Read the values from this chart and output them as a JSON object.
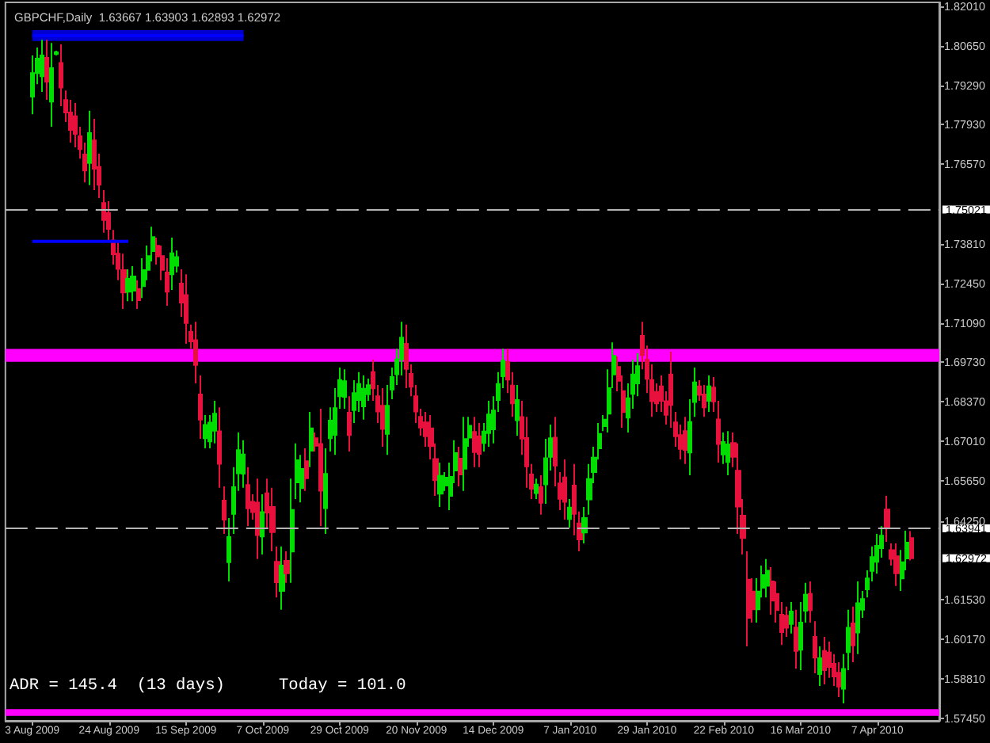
{
  "chart_data": {
    "type": "candlestick",
    "title": "GBPCHF,Daily  1.63667 1.63903 1.62893 1.62972",
    "categories": [
      "3 Aug 2009",
      null,
      null,
      null,
      null,
      null,
      null,
      null,
      null,
      null,
      null,
      null,
      null,
      null,
      null,
      null,
      "24 Aug 2009",
      null,
      null,
      null,
      null,
      null,
      null,
      null,
      null,
      null,
      null,
      null,
      null,
      null,
      null,
      null,
      "15 Sep 2009",
      null,
      null,
      null,
      null,
      null,
      null,
      null,
      null,
      null,
      null,
      null,
      null,
      null,
      null,
      null,
      "7 Oct 2009",
      null,
      null,
      null,
      null,
      null,
      null,
      null,
      null,
      null,
      null,
      null,
      null,
      null,
      null,
      null,
      "29 Oct 2009",
      null,
      null,
      null,
      null,
      null,
      null,
      null,
      null,
      null,
      null,
      null,
      null,
      null,
      null,
      null,
      "20 Nov 2009",
      null,
      null,
      null,
      null,
      null,
      null,
      null,
      null,
      null,
      null,
      null,
      null,
      null,
      null,
      null,
      "14 Dec 2009",
      null,
      null,
      null,
      null,
      null,
      null,
      null,
      null,
      null,
      null,
      null,
      null,
      null,
      null,
      null,
      "7 Jan 2010",
      null,
      null,
      null,
      null,
      null,
      null,
      null,
      null,
      null,
      null,
      null,
      null,
      null,
      null,
      null,
      "29 Jan 2010",
      null,
      null,
      null,
      null,
      null,
      null,
      null,
      null,
      null,
      null,
      null,
      null,
      null,
      null,
      null,
      "22 Feb 2010",
      null,
      null,
      null,
      null,
      null,
      null,
      null,
      null,
      null,
      null,
      null,
      null,
      null,
      null,
      null,
      "16 Mar 2010",
      null,
      null,
      null,
      null,
      null,
      null,
      null,
      null,
      null,
      null,
      null,
      null,
      null,
      null,
      null,
      "7 Apr 2010",
      null,
      null,
      null,
      null,
      null,
      null,
      null
    ],
    "ohlc": [
      [
        1.789,
        1.8032,
        1.7829,
        1.7971
      ],
      [
        1.7971,
        1.8059,
        1.7933,
        1.8021
      ],
      [
        1.796,
        1.8086,
        1.7906,
        1.8032
      ],
      [
        1.8024,
        1.8086,
        1.7879,
        1.7941
      ],
      [
        1.7873,
        1.8075,
        1.7786,
        1.7988
      ],
      [
        1.8037,
        1.8048,
        1.8032,
        1.8043
      ],
      [
        1.8006,
        1.807,
        1.7857,
        1.7921
      ],
      [
        1.7878,
        1.7911,
        1.7802,
        1.7835
      ],
      [
        1.7835,
        1.7879,
        1.7731,
        1.7775
      ],
      [
        1.7822,
        1.7868,
        1.7715,
        1.7761
      ],
      [
        1.7753,
        1.7786,
        1.7676,
        1.7709
      ],
      [
        1.769,
        1.7731,
        1.7594,
        1.7635
      ],
      [
        1.7661,
        1.7841,
        1.7584,
        1.7764
      ],
      [
        1.7739,
        1.7813,
        1.7567,
        1.7641
      ],
      [
        1.7647,
        1.7693,
        1.754,
        1.7586
      ],
      [
        1.7523,
        1.7567,
        1.742,
        1.7464
      ],
      [
        1.7488,
        1.7529,
        1.7392,
        1.7433
      ],
      [
        1.7394,
        1.743,
        1.731,
        1.7346
      ],
      [
        1.7348,
        1.7387,
        1.7256,
        1.7295
      ],
      [
        1.7291,
        1.7348,
        1.7157,
        1.7214
      ],
      [
        1.7217,
        1.7294,
        1.7184,
        1.7261
      ],
      [
        1.722,
        1.7305,
        1.7184,
        1.7269
      ],
      [
        1.7226,
        1.7256,
        1.7157,
        1.7187
      ],
      [
        1.7236,
        1.7332,
        1.7195,
        1.7291
      ],
      [
        1.7292,
        1.7376,
        1.7256,
        1.734
      ],
      [
        1.7357,
        1.7441,
        1.7321,
        1.7405
      ],
      [
        1.7375,
        1.7403,
        1.731,
        1.7338
      ],
      [
        1.734,
        1.7376,
        1.7256,
        1.7292
      ],
      [
        1.7283,
        1.7332,
        1.7168,
        1.7217
      ],
      [
        1.7277,
        1.7403,
        1.7223,
        1.7349
      ],
      [
        1.7306,
        1.7359,
        1.7283,
        1.7336
      ],
      [
        1.7245,
        1.7294,
        1.713,
        1.7179
      ],
      [
        1.7205,
        1.7277,
        1.7037,
        1.7109
      ],
      [
        1.7078,
        1.7103,
        1.702,
        1.7045
      ],
      [
        1.7049,
        1.7113,
        1.69,
        1.6964
      ],
      [
        1.6862,
        1.6928,
        1.6709,
        1.6775
      ],
      [
        1.6711,
        1.6791,
        1.6676,
        1.6757
      ],
      [
        1.67,
        1.6791,
        1.6676,
        1.6765
      ],
      [
        1.6737,
        1.684,
        1.6693,
        1.6796
      ],
      [
        1.6735,
        1.6818,
        1.654,
        1.6623
      ],
      [
        1.6496,
        1.6545,
        1.6381,
        1.643
      ],
      [
        1.6283,
        1.6436,
        1.6217,
        1.637
      ],
      [
        1.645,
        1.6611,
        1.6381,
        1.6542
      ],
      [
        1.659,
        1.6731,
        1.6529,
        1.667
      ],
      [
        1.6589,
        1.6704,
        1.654,
        1.6655
      ],
      [
        1.655,
        1.6611,
        1.6408,
        1.6469
      ],
      [
        1.6492,
        1.6518,
        1.643,
        1.6456
      ],
      [
        1.6489,
        1.6572,
        1.6294,
        1.6377
      ],
      [
        1.6372,
        1.6518,
        1.631,
        1.6456
      ],
      [
        1.6521,
        1.6572,
        1.6403,
        1.6454
      ],
      [
        1.6474,
        1.654,
        1.6321,
        1.6387
      ],
      [
        1.6285,
        1.6337,
        1.6162,
        1.6214
      ],
      [
        1.6184,
        1.6337,
        1.6119,
        1.6272
      ],
      [
        1.6288,
        1.6321,
        1.6212,
        1.6245
      ],
      [
        1.632,
        1.6572,
        1.6212,
        1.6464
      ],
      [
        1.6559,
        1.6693,
        1.6501,
        1.6635
      ],
      [
        1.6539,
        1.6654,
        1.649,
        1.6605
      ],
      [
        1.6632,
        1.6676,
        1.6529,
        1.6573
      ],
      [
        1.6668,
        1.6802,
        1.6611,
        1.6745
      ],
      [
        1.6711,
        1.6731,
        1.6665,
        1.6685
      ],
      [
        1.6691,
        1.6813,
        1.6408,
        1.653
      ],
      [
        1.647,
        1.6676,
        1.6381,
        1.6588
      ],
      [
        1.6711,
        1.6818,
        1.6665,
        1.6772
      ],
      [
        1.6723,
        1.6884,
        1.6654,
        1.6815
      ],
      [
        1.6856,
        1.6955,
        1.6813,
        1.6912
      ],
      [
        1.6854,
        1.6949,
        1.6813,
        1.6908
      ],
      [
        1.6799,
        1.6856,
        1.6665,
        1.6722
      ],
      [
        1.6808,
        1.6911,
        1.6764,
        1.6867
      ],
      [
        1.6843,
        1.6939,
        1.6802,
        1.6898
      ],
      [
        1.6821,
        1.6928,
        1.6775,
        1.6882
      ],
      [
        1.6863,
        1.6917,
        1.684,
        1.6894
      ],
      [
        1.6939,
        1.6982,
        1.684,
        1.6883
      ],
      [
        1.6856,
        1.6895,
        1.6764,
        1.6803
      ],
      [
        1.6823,
        1.6884,
        1.6682,
        1.6743
      ],
      [
        1.6726,
        1.6895,
        1.6654,
        1.6823
      ],
      [
        1.6879,
        1.6955,
        1.6846,
        1.6922
      ],
      [
        1.6932,
        1.702,
        1.6895,
        1.6983
      ],
      [
        1.6984,
        1.7113,
        1.6928,
        1.7058
      ],
      [
        1.7037,
        1.7103,
        1.6884,
        1.695
      ],
      [
        1.6933,
        1.6966,
        1.6856,
        1.6889
      ],
      [
        1.6856,
        1.6895,
        1.6764,
        1.6803
      ],
      [
        1.6785,
        1.6813,
        1.672,
        1.6748
      ],
      [
        1.6766,
        1.6802,
        1.6682,
        1.6718
      ],
      [
        1.6745,
        1.6791,
        1.6638,
        1.6684
      ],
      [
        1.6639,
        1.6693,
        1.6512,
        1.6566
      ],
      [
        1.652,
        1.6627,
        1.6474,
        1.6581
      ],
      [
        1.6548,
        1.6594,
        1.6529,
        1.6575
      ],
      [
        1.6512,
        1.6627,
        1.6463,
        1.6578
      ],
      [
        1.66,
        1.6704,
        1.6556,
        1.666
      ],
      [
        1.6641,
        1.6682,
        1.6545,
        1.6586
      ],
      [
        1.6606,
        1.6785,
        1.6529,
        1.6708
      ],
      [
        1.6713,
        1.6785,
        1.6682,
        1.6754
      ],
      [
        1.6733,
        1.6785,
        1.6611,
        1.6663
      ],
      [
        1.6718,
        1.6764,
        1.6611,
        1.6657
      ],
      [
        1.6695,
        1.6764,
        1.6665,
        1.6734
      ],
      [
        1.6729,
        1.684,
        1.6682,
        1.6793
      ],
      [
        1.6742,
        1.6856,
        1.6693,
        1.6807
      ],
      [
        1.6843,
        1.6939,
        1.6802,
        1.6898
      ],
      [
        1.6925,
        1.702,
        1.6884,
        1.6979
      ],
      [
        1.6974,
        1.702,
        1.6867,
        1.6913
      ],
      [
        1.6893,
        1.6939,
        1.6785,
        1.6831
      ],
      [
        1.6773,
        1.6895,
        1.672,
        1.6843
      ],
      [
        1.6784,
        1.684,
        1.6654,
        1.671
      ],
      [
        1.6712,
        1.6785,
        1.654,
        1.6614
      ],
      [
        1.6586,
        1.6622,
        1.6501,
        1.6537
      ],
      [
        1.6522,
        1.6572,
        1.6501,
        1.6551
      ],
      [
        1.6542,
        1.6583,
        1.6447,
        1.6488
      ],
      [
        1.6552,
        1.6709,
        1.6485,
        1.6642
      ],
      [
        1.6647,
        1.6758,
        1.66,
        1.6711
      ],
      [
        1.6713,
        1.6785,
        1.6545,
        1.6617
      ],
      [
        1.6555,
        1.6594,
        1.6463,
        1.6502
      ],
      [
        1.6576,
        1.6638,
        1.643,
        1.6492
      ],
      [
        1.6432,
        1.6501,
        1.6403,
        1.6472
      ],
      [
        1.6548,
        1.6622,
        1.6376,
        1.645
      ],
      [
        1.6417,
        1.6458,
        1.6321,
        1.6362
      ],
      [
        1.6386,
        1.6474,
        1.6348,
        1.6436
      ],
      [
        1.65,
        1.6622,
        1.6447,
        1.657
      ],
      [
        1.6594,
        1.6682,
        1.6556,
        1.6644
      ],
      [
        1.6676,
        1.6764,
        1.6638,
        1.6726
      ],
      [
        1.6753,
        1.6791,
        1.6736,
        1.6775
      ],
      [
        1.6796,
        1.6949,
        1.6731,
        1.6884
      ],
      [
        1.6931,
        1.7042,
        1.6884,
        1.6995
      ],
      [
        1.6957,
        1.6993,
        1.6873,
        1.6909
      ],
      [
        1.6874,
        1.6928,
        1.6747,
        1.6801
      ],
      [
        1.6782,
        1.69,
        1.6731,
        1.6849
      ],
      [
        1.6864,
        1.6982,
        1.6813,
        1.6931
      ],
      [
        1.69,
        1.7004,
        1.6856,
        1.696
      ],
      [
        1.7064,
        1.7113,
        1.6949,
        1.6998
      ],
      [
        1.6982,
        1.7031,
        1.6867,
        1.6916
      ],
      [
        1.6912,
        1.6966,
        1.6785,
        1.6839
      ],
      [
        1.6871,
        1.69,
        1.6802,
        1.6831
      ],
      [
        1.689,
        1.6928,
        1.6802,
        1.684
      ],
      [
        1.6839,
        1.6873,
        1.6758,
        1.6792
      ],
      [
        1.6931,
        1.701,
        1.6747,
        1.6826
      ],
      [
        1.6766,
        1.6802,
        1.6682,
        1.6718
      ],
      [
        1.6722,
        1.6758,
        1.6638,
        1.6674
      ],
      [
        1.6736,
        1.6785,
        1.6622,
        1.6671
      ],
      [
        1.6662,
        1.6846,
        1.6583,
        1.6767
      ],
      [
        1.6836,
        1.6955,
        1.6785,
        1.6904
      ],
      [
        1.689,
        1.6911,
        1.684,
        1.6861
      ],
      [
        1.6862,
        1.6895,
        1.6785,
        1.6818
      ],
      [
        1.684,
        1.6928,
        1.6802,
        1.689
      ],
      [
        1.6886,
        1.6922,
        1.6802,
        1.6838
      ],
      [
        1.6776,
        1.684,
        1.6627,
        1.6691
      ],
      [
        1.6655,
        1.6731,
        1.6622,
        1.6698
      ],
      [
        1.6629,
        1.6736,
        1.6583,
        1.669
      ],
      [
        1.6695,
        1.6731,
        1.6611,
        1.6647
      ],
      [
        1.6599,
        1.6693,
        1.6381,
        1.6475
      ],
      [
        1.6444,
        1.6501,
        1.631,
        1.6367
      ],
      [
        1.6223,
        1.6321,
        1.5993,
        1.6091
      ],
      [
        1.6182,
        1.6228,
        1.6075,
        1.6121
      ],
      [
        1.6121,
        1.6228,
        1.6075,
        1.6182
      ],
      [
        1.6195,
        1.6272,
        1.6162,
        1.6239
      ],
      [
        1.6202,
        1.6294,
        1.6162,
        1.6254
      ],
      [
        1.6217,
        1.6266,
        1.6102,
        1.6151
      ],
      [
        1.6174,
        1.6217,
        1.6075,
        1.6118
      ],
      [
        1.6102,
        1.6146,
        1.5998,
        1.6042
      ],
      [
        1.6099,
        1.613,
        1.6026,
        1.6057
      ],
      [
        1.607,
        1.6146,
        1.6037,
        1.6113
      ],
      [
        1.6058,
        1.6119,
        1.5916,
        1.5977
      ],
      [
        1.5981,
        1.6146,
        1.5911,
        1.6075
      ],
      [
        1.6116,
        1.6212,
        1.6075,
        1.6171
      ],
      [
        1.6174,
        1.6217,
        1.6075,
        1.6118
      ],
      [
        1.6026,
        1.608,
        1.59,
        1.5954
      ],
      [
        1.5897,
        1.5993,
        1.5856,
        1.5952
      ],
      [
        1.5977,
        1.6026,
        1.5862,
        1.5911
      ],
      [
        1.5972,
        1.6009,
        1.5884,
        1.5922
      ],
      [
        1.5933,
        1.5966,
        1.5856,
        1.5889
      ],
      [
        1.5902,
        1.5938,
        1.5818,
        1.5854
      ],
      [
        1.5847,
        1.5966,
        1.5796,
        1.5915
      ],
      [
        1.5973,
        1.6119,
        1.5911,
        1.6057
      ],
      [
        1.6072,
        1.613,
        1.5938,
        1.5996
      ],
      [
        1.6041,
        1.6217,
        1.5966,
        1.6142
      ],
      [
        1.6119,
        1.6184,
        1.6091,
        1.6156
      ],
      [
        1.619,
        1.6255,
        1.6162,
        1.6227
      ],
      [
        1.6253,
        1.6337,
        1.6217,
        1.6301
      ],
      [
        1.6285,
        1.6381,
        1.6244,
        1.634
      ],
      [
        1.6332,
        1.6408,
        1.6299,
        1.6375
      ],
      [
        1.6465,
        1.6512,
        1.6354,
        1.6401
      ],
      [
        1.6325,
        1.6348,
        1.6272,
        1.6295
      ],
      [
        1.6304,
        1.6348,
        1.6201,
        1.6245
      ],
      [
        1.6227,
        1.6326,
        1.6184,
        1.6283
      ],
      [
        1.6296,
        1.6392,
        1.6255,
        1.6351
      ],
      [
        1.63667,
        1.63903,
        1.62893,
        1.62972
      ]
    ],
    "colors": [
      "#00dd00",
      "#00dd00",
      "#00dd00",
      "#e8103c",
      "#00dd00",
      "#00dd00",
      "#e8103c",
      "#e8103c",
      "#e8103c",
      "#e8103c",
      "#e8103c",
      "#e8103c",
      "#00dd00",
      "#e8103c",
      "#e8103c",
      "#e8103c",
      "#e8103c",
      "#e8103c",
      "#e8103c",
      "#e8103c",
      "#00dd00",
      "#00dd00",
      "#e8103c",
      "#00dd00",
      "#00dd00",
      "#00dd00",
      "#e8103c",
      "#e8103c",
      "#e8103c",
      "#00dd00",
      "#00dd00",
      "#e8103c",
      "#e8103c",
      "#e8103c",
      "#e8103c",
      "#e8103c",
      "#00dd00",
      "#00dd00",
      "#00dd00",
      "#e8103c",
      "#e8103c",
      "#00dd00",
      "#00dd00",
      "#00dd00",
      "#00dd00",
      "#e8103c",
      "#e8103c",
      "#e8103c",
      "#00dd00",
      "#e8103c",
      "#e8103c",
      "#e8103c",
      "#00dd00",
      "#e8103c",
      "#00dd00",
      "#00dd00",
      "#00dd00",
      "#e8103c",
      "#00dd00",
      "#e8103c",
      "#e8103c",
      "#00dd00",
      "#00dd00",
      "#00dd00",
      "#00dd00",
      "#00dd00",
      "#e8103c",
      "#00dd00",
      "#00dd00",
      "#00dd00",
      "#00dd00",
      "#e8103c",
      "#e8103c",
      "#e8103c",
      "#00dd00",
      "#00dd00",
      "#00dd00",
      "#00dd00",
      "#e8103c",
      "#e8103c",
      "#e8103c",
      "#e8103c",
      "#e8103c",
      "#e8103c",
      "#e8103c",
      "#00dd00",
      "#00dd00",
      "#00dd00",
      "#00dd00",
      "#e8103c",
      "#00dd00",
      "#00dd00",
      "#e8103c",
      "#e8103c",
      "#00dd00",
      "#00dd00",
      "#00dd00",
      "#00dd00",
      "#00dd00",
      "#e8103c",
      "#e8103c",
      "#00dd00",
      "#e8103c",
      "#e8103c",
      "#e8103c",
      "#00dd00",
      "#e8103c",
      "#00dd00",
      "#00dd00",
      "#e8103c",
      "#e8103c",
      "#e8103c",
      "#00dd00",
      "#e8103c",
      "#e8103c",
      "#00dd00",
      "#00dd00",
      "#00dd00",
      "#00dd00",
      "#00dd00",
      "#00dd00",
      "#00dd00",
      "#e8103c",
      "#e8103c",
      "#00dd00",
      "#00dd00",
      "#00dd00",
      "#e8103c",
      "#e8103c",
      "#e8103c",
      "#e8103c",
      "#e8103c",
      "#e8103c",
      "#e8103c",
      "#e8103c",
      "#e8103c",
      "#e8103c",
      "#00dd00",
      "#00dd00",
      "#e8103c",
      "#e8103c",
      "#00dd00",
      "#e8103c",
      "#e8103c",
      "#00dd00",
      "#00dd00",
      "#e8103c",
      "#e8103c",
      "#e8103c",
      "#e8103c",
      "#e8103c",
      "#00dd00",
      "#00dd00",
      "#00dd00",
      "#e8103c",
      "#e8103c",
      "#e8103c",
      "#e8103c",
      "#00dd00",
      "#e8103c",
      "#00dd00",
      "#00dd00",
      "#e8103c",
      "#e8103c",
      "#00dd00",
      "#e8103c",
      "#e8103c",
      "#e8103c",
      "#e8103c",
      "#00dd00",
      "#00dd00",
      "#e8103c",
      "#00dd00",
      "#00dd00",
      "#00dd00",
      "#00dd00",
      "#00dd00",
      "#00dd00",
      "#e8103c",
      "#e8103c",
      "#e8103c",
      "#00dd00",
      "#00dd00",
      "#e8103c"
    ],
    "series": [
      {
        "type": "line",
        "color": "#0000ff",
        "values": [
          1.81,
          1.81,
          1.81,
          1.81,
          1.81,
          1.81,
          1.81,
          1.81,
          1.81,
          1.81,
          1.81,
          1.81,
          1.81,
          1.81,
          1.81,
          1.81,
          1.81,
          1.81,
          1.81,
          1.81,
          1.81,
          1.81,
          1.81,
          1.81,
          1.81,
          1.81,
          1.81,
          1.81,
          1.81,
          1.81,
          1.81,
          1.81,
          1.81,
          1.81,
          1.81,
          1.81,
          1.81,
          1.81,
          1.81,
          1.81,
          1.81,
          1.81,
          1.81,
          1.81,
          1.81,
          null,
          null,
          null,
          null,
          null,
          null,
          null,
          null,
          null,
          null,
          null,
          null,
          null,
          null,
          null,
          null,
          null,
          null,
          null,
          null,
          null,
          null,
          null,
          null,
          null,
          null,
          null,
          null,
          null,
          null,
          null,
          null,
          null,
          null,
          null,
          null,
          null,
          null,
          null,
          null,
          null,
          null,
          null,
          null,
          null,
          null,
          null,
          null,
          null,
          null,
          null,
          null,
          null,
          null,
          null,
          null,
          null,
          null,
          null,
          null,
          null,
          null,
          null,
          null,
          null,
          null,
          null,
          null,
          null,
          null,
          null,
          null,
          null,
          null,
          null,
          null,
          null,
          null,
          null,
          null,
          null,
          null,
          null,
          null,
          null,
          null,
          null,
          null,
          null,
          null,
          null,
          null,
          null,
          null,
          null,
          null,
          null,
          null,
          null,
          null,
          null,
          null,
          null,
          null,
          null,
          null,
          null,
          null,
          null,
          null,
          null,
          null,
          null,
          null,
          null,
          null,
          null,
          null,
          null,
          null,
          null,
          null,
          null,
          null,
          null,
          null,
          null,
          null,
          null,
          null,
          null,
          null,
          null,
          null,
          null,
          null,
          null,
          null,
          null
        ],
        "lower": [
          1.8082,
          1.8082,
          1.8082,
          1.8082,
          1.8082,
          1.8082,
          1.8082,
          1.8082,
          1.8082,
          1.8082,
          1.8082,
          1.8082,
          1.8082,
          1.8082,
          1.8082,
          1.8082,
          1.8082,
          1.8082,
          1.8082,
          1.8082,
          1.8082,
          1.8082,
          1.8082,
          1.8082,
          1.8082,
          1.8082,
          1.8082,
          1.8082,
          1.8082,
          1.8082,
          1.8082,
          1.8082,
          1.8082,
          1.8082,
          1.8082,
          1.8082,
          1.8082,
          1.8082,
          1.8082,
          1.8082,
          1.8082,
          1.8082,
          1.8082,
          1.8082,
          1.8082,
          null,
          null,
          null,
          null,
          null,
          null,
          null,
          null,
          null,
          null,
          null,
          null,
          null,
          null,
          null,
          null,
          null,
          null,
          null,
          null,
          null,
          null,
          null,
          null,
          null,
          null,
          null,
          null,
          null,
          null,
          null,
          null,
          null,
          null,
          null,
          null,
          null,
          null,
          null,
          null,
          null,
          null,
          null,
          null,
          null,
          null,
          null,
          null,
          null,
          null,
          null,
          null,
          null,
          null,
          null,
          null,
          null,
          null,
          null,
          null,
          null,
          null,
          null,
          null,
          null,
          null,
          null,
          null,
          null,
          null,
          null,
          null,
          null,
          null,
          null,
          null,
          null,
          null,
          null,
          null,
          null,
          null,
          null,
          null,
          null,
          null,
          null,
          null,
          null,
          null,
          null,
          null,
          null,
          null,
          null,
          null,
          null,
          null,
          null,
          null,
          null,
          null,
          null,
          null,
          null,
          null,
          null,
          null,
          null,
          null,
          null,
          null,
          null,
          null,
          null,
          null,
          null,
          null,
          null,
          null,
          null,
          null,
          null,
          null,
          null,
          null,
          null,
          null,
          null,
          null,
          null,
          null,
          null,
          null,
          null,
          null,
          null,
          null,
          null
        ],
        "upper": [
          1.8119,
          1.8119,
          1.8119,
          1.8119,
          1.8119,
          1.8119,
          1.8119,
          1.8119,
          1.8119,
          1.8119,
          1.8119,
          1.8119,
          1.8119,
          1.8119,
          1.8119,
          1.8119,
          1.8119,
          1.8119,
          1.8119,
          1.8119,
          1.8119,
          1.8119,
          1.8119,
          1.8119,
          1.8119,
          1.8119,
          1.8119,
          1.8119,
          1.8119,
          1.8119,
          1.8119,
          1.8119,
          1.8119,
          1.8119,
          1.8119,
          1.8119,
          1.8119,
          1.8119,
          1.8119,
          1.8119,
          1.8119,
          1.8119,
          1.8119,
          1.8119,
          1.8119,
          null,
          null,
          null,
          null,
          null,
          null,
          null,
          null,
          null,
          null,
          null,
          null,
          null,
          null,
          null,
          null,
          null,
          null,
          null,
          null,
          null,
          null,
          null,
          null,
          null,
          null,
          null,
          null,
          null,
          null,
          null,
          null,
          null,
          null,
          null,
          null,
          null,
          null,
          null,
          null,
          null,
          null,
          null,
          null,
          null,
          null,
          null,
          null,
          null,
          null,
          null,
          null,
          null,
          null,
          null,
          null,
          null,
          null,
          null,
          null,
          null,
          null,
          null,
          null,
          null,
          null,
          null,
          null,
          null,
          null,
          null,
          null,
          null,
          null,
          null,
          null,
          null,
          null,
          null,
          null,
          null,
          null,
          null,
          null,
          null,
          null,
          null,
          null,
          null,
          null,
          null,
          null,
          null,
          null,
          null,
          null,
          null,
          null,
          null,
          null,
          null,
          null,
          null,
          null,
          null,
          null,
          null,
          null,
          null,
          null,
          null,
          null,
          null,
          null,
          null,
          null,
          null,
          null,
          null,
          null,
          null,
          null,
          null,
          null,
          null,
          null,
          null,
          null,
          null,
          null,
          null,
          null,
          null,
          null,
          null,
          null,
          null,
          null,
          null
        ]
      },
      {
        "type": "line",
        "color": "#0000ff",
        "values": [
          1.739,
          1.739,
          1.739,
          1.739,
          1.739,
          1.739,
          1.739,
          1.739,
          1.739,
          1.739,
          1.739,
          1.739,
          1.739,
          1.739,
          1.739,
          1.739,
          1.739,
          1.739,
          1.739,
          1.739,
          1.739,
          null,
          null,
          null,
          null,
          null,
          null,
          null,
          null,
          null,
          null,
          null,
          null,
          null,
          null,
          null,
          null,
          null,
          null,
          null,
          null,
          null,
          null,
          null,
          null,
          null,
          null,
          null,
          null,
          null,
          null,
          null,
          null,
          null,
          null,
          null,
          null,
          null,
          null,
          null,
          null,
          null,
          null,
          null,
          null,
          null,
          null,
          null,
          null,
          null,
          null,
          null,
          null,
          null,
          null,
          null,
          null,
          null,
          null,
          null,
          null,
          null,
          null,
          null,
          null,
          null,
          null,
          null,
          null,
          null,
          null,
          null,
          null,
          null,
          null,
          null,
          null,
          null,
          null,
          null,
          null,
          null,
          null,
          null,
          null,
          null,
          null,
          null,
          null,
          null,
          null,
          null,
          null,
          null,
          null,
          null,
          null,
          null,
          null,
          null,
          null,
          null,
          null,
          null,
          null,
          null,
          null,
          null,
          null,
          null,
          null,
          null,
          null,
          null,
          null,
          null,
          null,
          null,
          null,
          null,
          null,
          null,
          null,
          null,
          null,
          null,
          null,
          null,
          null,
          null,
          null,
          null,
          null,
          null,
          null,
          null,
          null,
          null,
          null,
          null,
          null,
          null,
          null,
          null,
          null,
          null,
          null,
          null,
          null,
          null,
          null,
          null,
          null,
          null,
          null,
          null,
          null,
          null,
          null,
          null,
          null,
          null,
          null,
          null
        ]
      }
    ],
    "ylim": [
      1.5736,
      1.8215
    ],
    "yticks": [
      {
        "value": 1.8201,
        "label": "1.82010"
      },
      {
        "value": 1.8065,
        "label": "1.80650"
      },
      {
        "value": 1.7929,
        "label": "1.79290"
      },
      {
        "value": 1.7793,
        "label": "1.77930"
      },
      {
        "value": 1.7657,
        "label": "1.76570"
      },
      {
        "value": 1.7381,
        "label": "1.73810"
      },
      {
        "value": 1.7245,
        "label": "1.72450"
      },
      {
        "value": 1.7109,
        "label": "1.71090"
      },
      {
        "value": 1.6973,
        "label": "1.69730"
      },
      {
        "value": 1.6837,
        "label": "1.68370"
      },
      {
        "value": 1.6701,
        "label": "1.67010"
      },
      {
        "value": 1.6565,
        "label": "1.65650"
      },
      {
        "value": 1.6425,
        "label": "1.64250"
      },
      {
        "value": 1.6153,
        "label": "1.61530"
      },
      {
        "value": 1.6017,
        "label": "1.60170"
      },
      {
        "value": 1.5881,
        "label": "1.58810"
      },
      {
        "value": 1.5745,
        "label": "1.57450"
      }
    ],
    "ref_lines": [
      {
        "axis": "y",
        "value": 1.75021,
        "label": "1.75021",
        "color": "#b4b4b4",
        "line_style": "dashed"
      },
      {
        "axis": "y",
        "value": 1.63941,
        "label": "1.63941",
        "color": "#b4b4b4",
        "line_style": "dashed"
      }
    ],
    "bands": [
      {
        "axis": "y",
        "from": 1.6975,
        "to": 1.7019,
        "color": "#ff00ff"
      },
      {
        "axis": "y",
        "from": 1.5753,
        "to": 1.5776,
        "color": "#ff00ff"
      }
    ],
    "annotations": [
      "ADR = 145.4  (13 days)",
      "Today = 101.0",
      "1.62972"
    ],
    "grid": false,
    "marker": "none"
  }
}
